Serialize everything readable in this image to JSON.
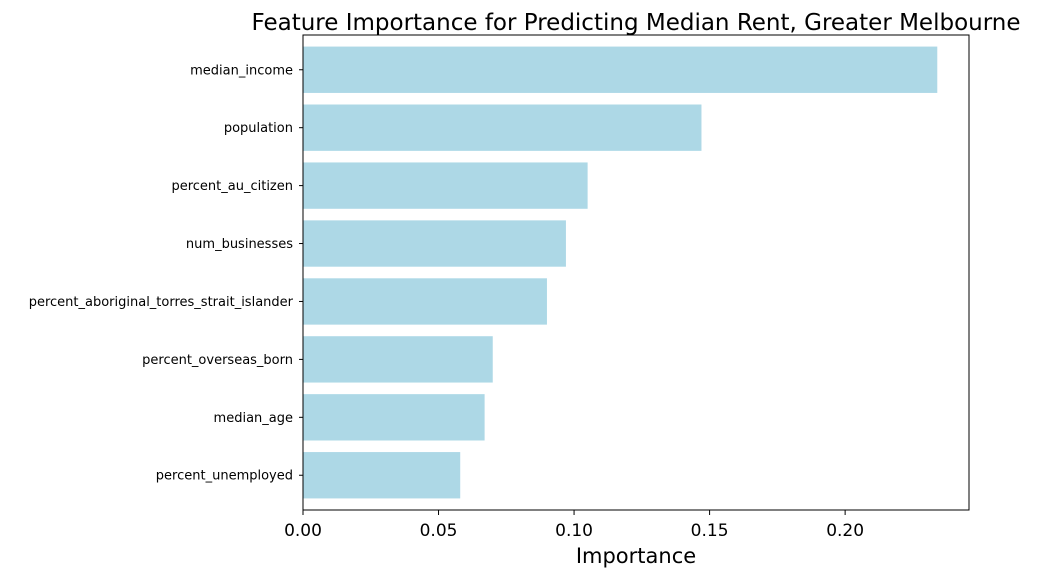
{
  "chart_data": {
    "type": "bar",
    "orientation": "horizontal",
    "title": "Feature Importance for Predicting Median Rent, Greater Melbourne",
    "xlabel": "Importance",
    "ylabel": "",
    "categories": [
      "median_income",
      "population",
      "percent_au_citizen",
      "num_businesses",
      "percent_aboriginal_torres_strait_islander",
      "percent_overseas_born",
      "median_age",
      "percent_unemployed"
    ],
    "values": [
      0.234,
      0.147,
      0.105,
      0.097,
      0.09,
      0.07,
      0.067,
      0.058
    ],
    "xlim": [
      0,
      0.2457
    ],
    "xticks": [
      0.0,
      0.05,
      0.1,
      0.15,
      0.2
    ],
    "xtick_labels": [
      "0.00",
      "0.05",
      "0.10",
      "0.15",
      "0.20"
    ],
    "bar_color": "#add8e6",
    "grid": false,
    "legend": "none"
  }
}
